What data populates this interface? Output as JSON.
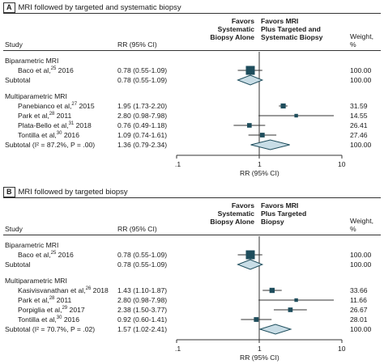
{
  "chart_data": [
    {
      "type": "forest",
      "panel_letter": "A",
      "title": "MRI followed by targeted and systematic biopsy",
      "headers": {
        "study": "Study",
        "rr": "RR (95% CI)",
        "favors_left": [
          "Favors",
          "Systematic",
          "Biopsy Alone"
        ],
        "favors_right": [
          "Favors MRI",
          "Plus Targeted and",
          "Systematic Biopsy"
        ],
        "weight": [
          "Weight,",
          "%"
        ]
      },
      "xaxis": {
        "scale": "log",
        "range": [
          0.1,
          10
        ],
        "ticks": [
          ".1",
          "1",
          "10"
        ],
        "label": "RR (95% CI)"
      },
      "groups": [
        {
          "label": "Biparametric MRI",
          "studies": [
            {
              "name": "Baco et al,",
              "ref": "25",
              "year": "2016",
              "rr": 0.78,
              "lo": 0.55,
              "hi": 1.09,
              "ci": "0.78 (0.55-1.09)",
              "weight": "100.00"
            }
          ],
          "subtotal": {
            "label": "Subtotal",
            "rr": 0.78,
            "lo": 0.55,
            "hi": 1.09,
            "ci": "0.78 (0.55-1.09)",
            "weight": "100.00"
          }
        },
        {
          "label": "Multiparametric MRI",
          "studies": [
            {
              "name": "Panebianco et al,",
              "ref": "27",
              "year": "2015",
              "rr": 1.95,
              "lo": 1.73,
              "hi": 2.2,
              "ci": "1.95 (1.73-2.20)",
              "weight": "31.59"
            },
            {
              "name": "Park et al,",
              "ref": "28",
              "year": "2011",
              "rr": 2.8,
              "lo": 0.98,
              "hi": 7.98,
              "ci": "2.80 (0.98-7.98)",
              "weight": "14.55"
            },
            {
              "name": "Plata-Bello et al,",
              "ref": "31",
              "year": "2018",
              "rr": 0.76,
              "lo": 0.49,
              "hi": 1.18,
              "ci": "0.76 (0.49-1.18)",
              "weight": "26.41"
            },
            {
              "name": "Tontilla et al,",
              "ref": "30",
              "year": "2016",
              "rr": 1.09,
              "lo": 0.74,
              "hi": 1.61,
              "ci": "1.09 (0.74-1.61)",
              "weight": "27.46"
            }
          ],
          "subtotal": {
            "label": "Subtotal (I² = 87.2%, P = .00)",
            "rr": 1.36,
            "lo": 0.79,
            "hi": 2.34,
            "ci": "1.36 (0.79-2.34)",
            "weight": "100.00"
          }
        }
      ]
    },
    {
      "type": "forest",
      "panel_letter": "B",
      "title": "MRI followed by targeted biopsy",
      "headers": {
        "study": "Study",
        "rr": "RR (95% CI)",
        "favors_left": [
          "Favors",
          "Systematic",
          "Biopsy Alone"
        ],
        "favors_right": [
          "Favors MRI",
          "Plus Targeted",
          "Biopsy"
        ],
        "weight": [
          "Weight,",
          "%"
        ]
      },
      "xaxis": {
        "scale": "log",
        "range": [
          0.1,
          10
        ],
        "ticks": [
          ".1",
          "1",
          "10"
        ],
        "label": "RR (95% CI)"
      },
      "groups": [
        {
          "label": "Biparametric MRI",
          "studies": [
            {
              "name": "Baco et al,",
              "ref": "25",
              "year": "2016",
              "rr": 0.78,
              "lo": 0.55,
              "hi": 1.09,
              "ci": "0.78 (0.55-1.09)",
              "weight": "100.00"
            }
          ],
          "subtotal": {
            "label": "Subtotal",
            "rr": 0.78,
            "lo": 0.55,
            "hi": 1.09,
            "ci": "0.78 (0.55-1.09)",
            "weight": "100.00"
          }
        },
        {
          "label": "Multiparametric MRI",
          "studies": [
            {
              "name": "Kasivisvanathan et al,",
              "ref": "26",
              "year": "2018",
              "rr": 1.43,
              "lo": 1.1,
              "hi": 1.87,
              "ci": "1.43 (1.10-1.87)",
              "weight": "33.66"
            },
            {
              "name": "Park et al,",
              "ref": "28",
              "year": "2011",
              "rr": 2.8,
              "lo": 0.98,
              "hi": 7.98,
              "ci": "2.80 (0.98-7.98)",
              "weight": "11.66"
            },
            {
              "name": "Porpiglia et al,",
              "ref": "29",
              "year": "2017",
              "rr": 2.38,
              "lo": 1.5,
              "hi": 3.77,
              "ci": "2.38 (1.50-3.77)",
              "weight": "26.67"
            },
            {
              "name": "Tontilla et al,",
              "ref": "30",
              "year": "2016",
              "rr": 0.92,
              "lo": 0.6,
              "hi": 1.41,
              "ci": "0.92 (0.60-1.41)",
              "weight": "28.01"
            }
          ],
          "subtotal": {
            "label": "Subtotal (I² = 70.7%, P = .02)",
            "rr": 1.57,
            "lo": 1.02,
            "hi": 2.41,
            "ci": "1.57 (1.02-2.41)",
            "weight": "100.00"
          }
        }
      ]
    }
  ],
  "colors": {
    "marker": "#1e4d5c",
    "diamond": "#c8dde6",
    "diamond_stroke": "#1e4d5c",
    "line": "#333333"
  }
}
